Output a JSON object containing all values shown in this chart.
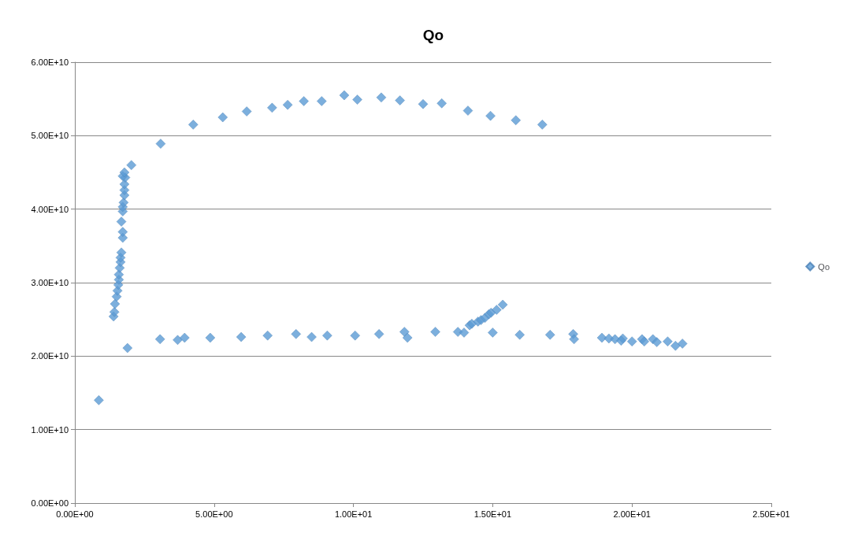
{
  "chart_data": {
    "type": "scatter",
    "title": "Qo",
    "legend": "right",
    "grid": "y",
    "marker": "diamond",
    "xlim": [
      0,
      25
    ],
    "ylim": [
      0,
      60000000000.0
    ],
    "xticks": [
      {
        "value": 0,
        "label": "0.00E+00"
      },
      {
        "value": 5,
        "label": "5.00E+00"
      },
      {
        "value": 10,
        "label": "1.00E+01"
      },
      {
        "value": 15,
        "label": "1.50E+01"
      },
      {
        "value": 20,
        "label": "2.00E+01"
      },
      {
        "value": 25,
        "label": "2.50E+01"
      }
    ],
    "yticks": [
      {
        "value": 0,
        "label": "0.00E+00"
      },
      {
        "value": 10000000000.0,
        "label": "1.00E+10"
      },
      {
        "value": 20000000000.0,
        "label": "2.00E+10"
      },
      {
        "value": 30000000000.0,
        "label": "3.00E+10"
      },
      {
        "value": 40000000000.0,
        "label": "4.00E+10"
      },
      {
        "value": 50000000000.0,
        "label": "5.00E+10"
      },
      {
        "value": 60000000000.0,
        "label": "6.00E+10"
      }
    ],
    "series": [
      {
        "name": "Qo",
        "color": "#5b9bd5",
        "x": [
          0.86,
          1.89,
          1.39,
          1.42,
          1.44,
          1.5,
          1.53,
          1.56,
          1.58,
          1.58,
          1.61,
          1.64,
          1.64,
          1.67,
          1.72,
          1.72,
          1.67,
          1.72,
          1.72,
          1.75,
          1.78,
          1.78,
          1.78,
          1.81,
          1.72,
          1.78,
          2.03,
          3.08,
          4.25,
          5.31,
          6.17,
          7.08,
          7.64,
          8.22,
          8.86,
          9.67,
          10.14,
          11.0,
          11.67,
          12.5,
          13.17,
          14.11,
          14.92,
          15.83,
          16.78,
          3.06,
          3.69,
          3.94,
          4.86,
          5.97,
          6.92,
          7.94,
          8.5,
          9.06,
          10.06,
          10.92,
          11.83,
          11.94,
          12.94,
          13.75,
          13.97,
          14.17,
          14.25,
          14.47,
          14.58,
          14.72,
          14.86,
          14.94,
          15.14,
          15.36,
          15.0,
          15.97,
          17.06,
          17.89,
          17.92,
          18.92,
          19.17,
          19.39,
          19.67,
          19.61,
          20.0,
          20.36,
          20.44,
          20.75,
          20.89,
          21.28,
          21.56,
          21.81
        ],
        "values": [
          14000000000.0,
          21100000000.0,
          25400000000.0,
          26000000000.0,
          27100000000.0,
          28100000000.0,
          28900000000.0,
          29700000000.0,
          30400000000.0,
          31100000000.0,
          32000000000.0,
          32800000000.0,
          33400000000.0,
          34100000000.0,
          36100000000.0,
          36900000000.0,
          38300000000.0,
          39700000000.0,
          40300000000.0,
          40900000000.0,
          41900000000.0,
          42600000000.0,
          43400000000.0,
          44300000000.0,
          44500000000.0,
          45000000000.0,
          46000000000.0,
          48900000000.0,
          51500000000.0,
          52500000000.0,
          53300000000.0,
          53800000000.0,
          54200000000.0,
          54700000000.0,
          54700000000.0,
          55500000000.0,
          54900000000.0,
          55200000000.0,
          54800000000.0,
          54300000000.0,
          54400000000.0,
          53400000000.0,
          52700000000.0,
          52100000000.0,
          51500000000.0,
          22300000000.0,
          22200000000.0,
          22500000000.0,
          22500000000.0,
          22600000000.0,
          22800000000.0,
          23000000000.0,
          22600000000.0,
          22800000000.0,
          22800000000.0,
          23000000000.0,
          23300000000.0,
          22500000000.0,
          23300000000.0,
          23300000000.0,
          23200000000.0,
          24200000000.0,
          24400000000.0,
          24700000000.0,
          24900000000.0,
          25200000000.0,
          25700000000.0,
          25900000000.0,
          26300000000.0,
          27000000000.0,
          23200000000.0,
          22900000000.0,
          22900000000.0,
          23000000000.0,
          22300000000.0,
          22500000000.0,
          22400000000.0,
          22300000000.0,
          22400000000.0,
          22100000000.0,
          22000000000.0,
          22300000000.0,
          22000000000.0,
          22300000000.0,
          21900000000.0,
          22000000000.0,
          21400000000.0,
          21700000000.0
        ]
      }
    ]
  }
}
